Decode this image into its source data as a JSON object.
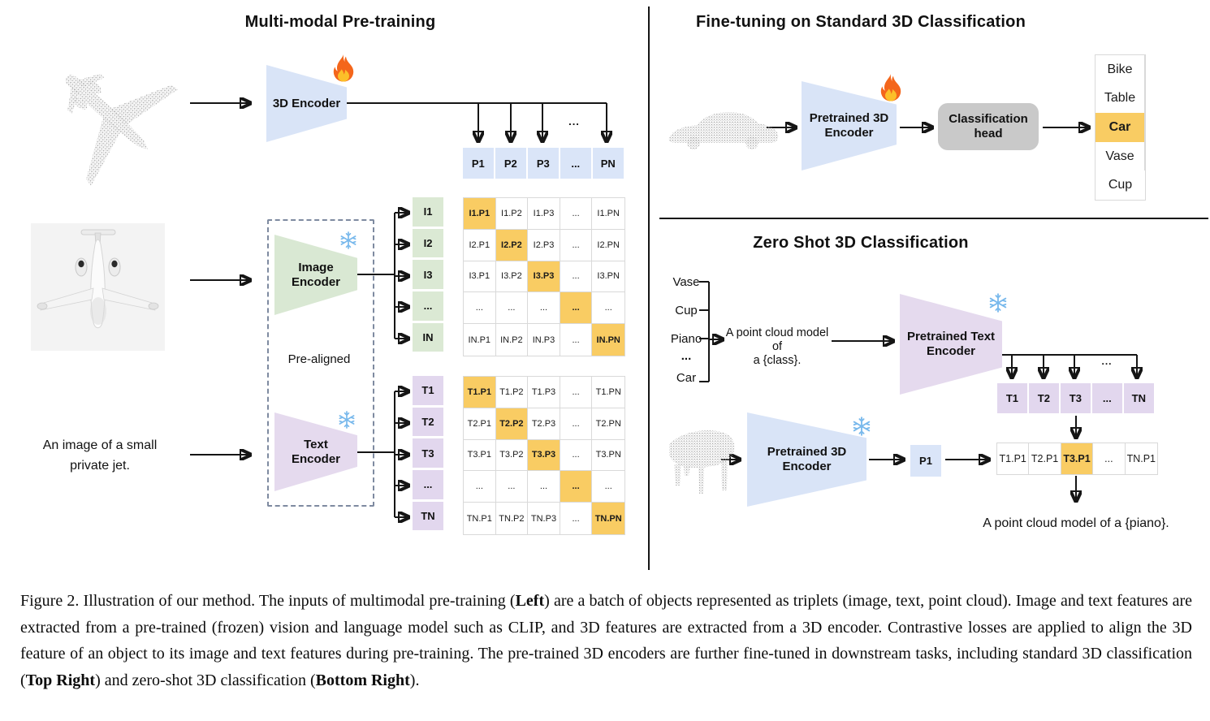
{
  "dots": "...",
  "icons": {
    "fire": "fire-icon",
    "snowflake": "snowflake-icon"
  },
  "colors": {
    "encoder_blue": "#d9e4f7",
    "cell_blue": "#dae5f8",
    "encoder_green": "#d9e8d3",
    "encoder_purple": "#e5daee",
    "cell_purple": "#e2d7ee",
    "highlight_orange": "#f9cc63",
    "head_gray": "#c9c9c9"
  },
  "panels": {
    "pretraining": {
      "title": "Multi-modal Pre-training",
      "encoder3d": "3D Encoder",
      "image_encoder": "Image Encoder",
      "text_encoder": "Text Encoder",
      "pre_aligned": "Pre-aligned",
      "image_caption": "An image of a small private jet.",
      "p_cells": [
        "P1",
        "P2",
        "P3",
        "...",
        "PN"
      ],
      "i_labels": [
        "I1",
        "I2",
        "I3",
        "...",
        "IN"
      ],
      "i_matrix": [
        [
          "I1.P1",
          "I1.P2",
          "I1.P3",
          "...",
          "I1.PN"
        ],
        [
          "I2.P1",
          "I2.P2",
          "I2.P3",
          "...",
          "I2.PN"
        ],
        [
          "I3.P1",
          "I3.P2",
          "I3.P3",
          "...",
          "I3.PN"
        ],
        [
          "...",
          "...",
          "...",
          "...",
          "..."
        ],
        [
          "IN.P1",
          "IN.P2",
          "IN.P3",
          "...",
          "IN.PN"
        ]
      ],
      "t_labels": [
        "T1",
        "T2",
        "T3",
        "...",
        "TN"
      ],
      "t_matrix": [
        [
          "T1.P1",
          "T1.P2",
          "T1.P3",
          "...",
          "T1.PN"
        ],
        [
          "T2.P1",
          "T2.P2",
          "T2.P3",
          "...",
          "T2.PN"
        ],
        [
          "T3.P1",
          "T3.P2",
          "T3.P3",
          "...",
          "T3.PN"
        ],
        [
          "...",
          "...",
          "...",
          "...",
          "..."
        ],
        [
          "TN.P1",
          "TN.P2",
          "TN.P3",
          "...",
          "TN.PN"
        ]
      ]
    },
    "finetune": {
      "title": "Fine-tuning on Standard 3D Classification",
      "encoder": "Pretrained 3D Encoder",
      "head": "Classification head",
      "classes": [
        "Bike",
        "Table",
        "Car",
        "Vase",
        "Cup"
      ],
      "highlighted_class": "Car"
    },
    "zeroshot": {
      "title": "Zero Shot 3D Classification",
      "classes": [
        "Vase",
        "Cup",
        "Piano",
        "...",
        "Car"
      ],
      "prompt_line1": "A point cloud model of",
      "prompt_line2": "a {class}.",
      "text_encoder": "Pretrained Text Encoder",
      "encoder3d": "Pretrained 3D Encoder",
      "p1": "P1",
      "t_cells": [
        "T1",
        "T2",
        "T3",
        "...",
        "TN"
      ],
      "tp_cells": [
        "T1.P1",
        "T2.P1",
        "T3.P1",
        "...",
        "TN.P1"
      ],
      "highlighted_cell": "T3.P1",
      "result": "A point cloud model of a {piano}."
    }
  },
  "caption": {
    "segments": [
      {
        "text": "Figure 2. Illustration of our method. The inputs of multimodal pre-training (",
        "bold": false
      },
      {
        "text": "Left",
        "bold": true
      },
      {
        "text": ") are a batch of objects represented as triplets (image, text, point cloud).  Image and text features are extracted from a pre-trained (frozen) vision and language model such as CLIP, and 3D features are extracted from a 3D encoder.  Contrastive losses are applied to align the 3D feature of an object to its image and text features during pre-training.  The pre-trained 3D encoders are further fine-tuned in downstream tasks, including standard 3D classification (",
        "bold": false
      },
      {
        "text": "Top Right",
        "bold": true
      },
      {
        "text": ") and zero-shot 3D classification (",
        "bold": false
      },
      {
        "text": "Bottom Right",
        "bold": true
      },
      {
        "text": ").",
        "bold": false
      }
    ]
  }
}
